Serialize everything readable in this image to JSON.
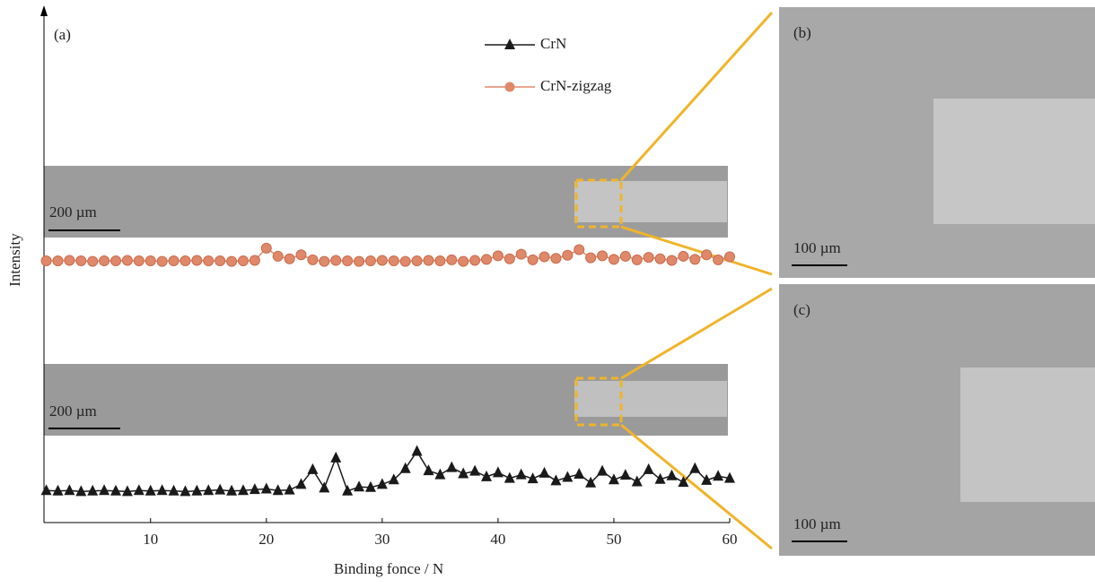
{
  "chart_data": {
    "type": "line",
    "xlabel": "Binding fonce / N",
    "ylabel": "Intensity",
    "xlim": [
      0.8,
      60
    ],
    "xticks": [
      10,
      20,
      30,
      40,
      50,
      60
    ],
    "ylim": [
      0,
      100
    ],
    "legend": "top-center",
    "annotations": [
      "(a)",
      "(b)",
      "(c)",
      "200 µm",
      "200 µm",
      "100 µm",
      "100 µm"
    ],
    "x": [
      1,
      2,
      3,
      4,
      5,
      6,
      7,
      8,
      9,
      10,
      11,
      12,
      13,
      14,
      15,
      16,
      17,
      18,
      19,
      20,
      21,
      22,
      23,
      24,
      25,
      26,
      27,
      28,
      29,
      30,
      31,
      32,
      33,
      34,
      35,
      36,
      37,
      38,
      39,
      40,
      41,
      42,
      43,
      44,
      45,
      46,
      47,
      48,
      49,
      50,
      51,
      52,
      53,
      54,
      55,
      56,
      57,
      58,
      59,
      60
    ],
    "series": [
      {
        "name": "CrN",
        "color": "#1a1a1a",
        "marker": "triangle",
        "values": [
          6.3,
          6.2,
          6.3,
          6.1,
          6.2,
          6.3,
          6.2,
          6.1,
          6.3,
          6.2,
          6.3,
          6.2,
          6.1,
          6.2,
          6.3,
          6.4,
          6.2,
          6.3,
          6.5,
          6.6,
          6.3,
          6.4,
          7.5,
          10.4,
          6.8,
          12.7,
          6.2,
          7.0,
          6.9,
          7.5,
          8.4,
          10.6,
          14.0,
          10.2,
          9.4,
          10.8,
          9.6,
          10.1,
          9.0,
          9.8,
          8.7,
          9.4,
          8.6,
          9.7,
          8.2,
          8.9,
          9.5,
          7.8,
          10.1,
          8.4,
          9.3,
          8.0,
          10.4,
          8.5,
          9.2,
          7.9,
          10.6,
          8.3,
          9.1,
          8.7
        ]
      },
      {
        "name": "CrN-zigzag",
        "color": "#e0896a",
        "marker": "circle",
        "values": [
          51.4,
          51.4,
          51.5,
          51.4,
          51.3,
          51.4,
          51.4,
          51.5,
          51.4,
          51.4,
          51.3,
          51.4,
          51.4,
          51.5,
          51.4,
          51.4,
          51.3,
          51.4,
          51.5,
          53.9,
          52.3,
          51.8,
          52.6,
          51.6,
          51.3,
          51.5,
          51.4,
          51.3,
          51.4,
          51.5,
          51.4,
          51.3,
          51.4,
          51.5,
          51.4,
          51.6,
          51.3,
          51.5,
          51.7,
          52.4,
          51.8,
          52.7,
          51.6,
          52.2,
          51.9,
          52.5,
          53.6,
          52.0,
          52.4,
          51.7,
          52.3,
          51.6,
          52.1,
          51.8,
          51.5,
          52.3,
          51.7,
          52.6,
          51.6,
          52.2
        ]
      }
    ]
  }
}
